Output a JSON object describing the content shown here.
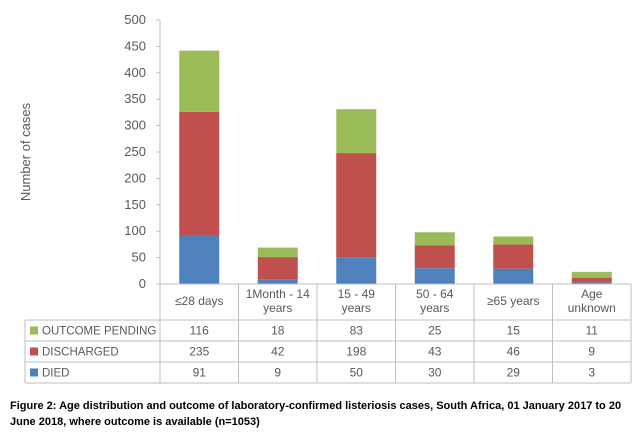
{
  "chart_data": {
    "type": "bar",
    "stacked": true,
    "ylabel": "Number of cases",
    "ylim": [
      0,
      500
    ],
    "yticks": [
      0,
      50,
      100,
      150,
      200,
      250,
      300,
      350,
      400,
      450,
      500
    ],
    "grid": false,
    "legend_placement": "table rows below the chart",
    "categories": [
      [
        "≤28 days"
      ],
      [
        "1Month - 14",
        "years"
      ],
      [
        "15 - 49",
        "years"
      ],
      [
        "50 - 64",
        "years"
      ],
      [
        "≥65 years"
      ],
      [
        "Age",
        "unknown"
      ]
    ],
    "series": [
      {
        "name": "DIED",
        "color": "#4f81bd",
        "values": [
          91,
          9,
          50,
          30,
          29,
          3
        ]
      },
      {
        "name": "DISCHARGED",
        "color": "#c0504d",
        "values": [
          235,
          42,
          198,
          43,
          46,
          9
        ]
      },
      {
        "name": "OUTCOME PENDING",
        "color": "#9bbb59",
        "values": [
          116,
          18,
          83,
          25,
          15,
          11
        ]
      }
    ],
    "table_row_order": [
      "OUTCOME PENDING",
      "DISCHARGED",
      "DIED"
    ]
  },
  "caption": "Figure 2: Age distribution and outcome of laboratory-confirmed listeriosis cases, South Africa, 01 January 2017 to 20 June 2018, where outcome is available (n=1053)"
}
